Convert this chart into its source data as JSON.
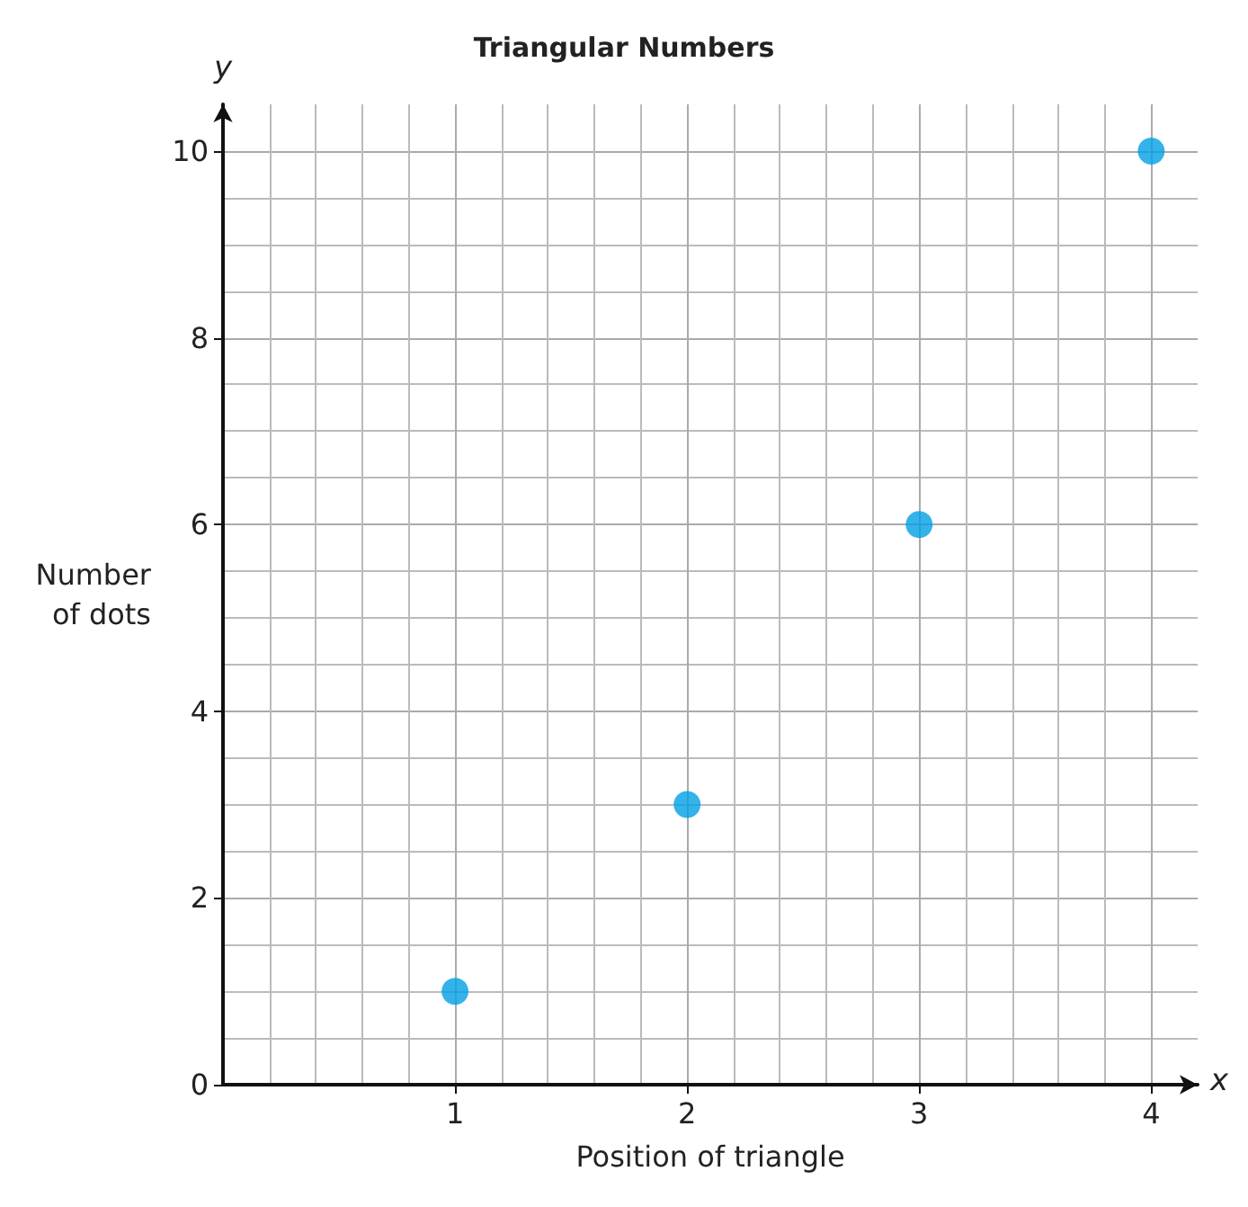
{
  "chart_data": {
    "type": "scatter",
    "title": "Triangular Numbers",
    "xlabel": "Position of triangle",
    "ylabel": "Number\nof dots",
    "annotations": [
      "x",
      "y"
    ],
    "x": [
      1,
      2,
      3,
      4
    ],
    "series": [
      {
        "color": "#00a0e3",
        "values": [
          1,
          3,
          6,
          10
        ]
      }
    ],
    "xlim": [
      0,
      4.2
    ],
    "xticks": [
      1,
      2,
      3,
      4
    ],
    "ylim": [
      0,
      10.5
    ],
    "yticks": [
      0,
      2,
      4,
      6,
      8,
      10
    ],
    "grid": true,
    "marker": "circle"
  }
}
